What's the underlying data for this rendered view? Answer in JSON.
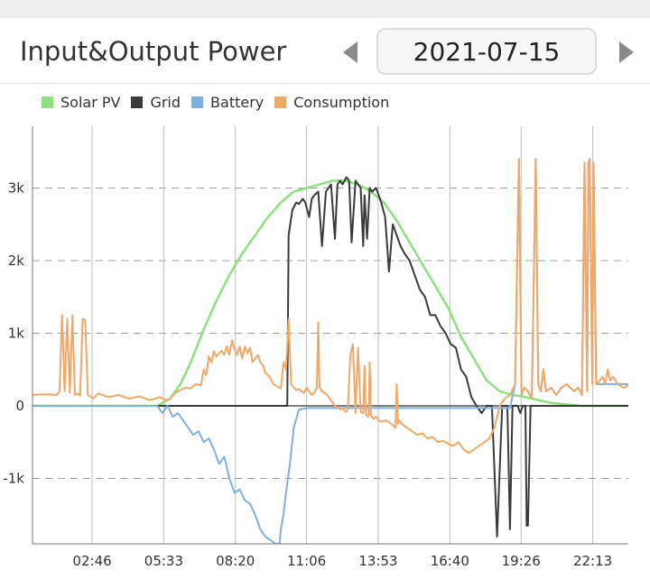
{
  "header": {
    "title": "Input&Output Power",
    "date": "2021-07-15"
  },
  "chart_data": {
    "type": "line",
    "title": "",
    "xlabel": "",
    "ylabel": "",
    "xlim": [
      0.45,
      23.6
    ],
    "ylim": [
      -1900,
      3850
    ],
    "x_ticks": [
      2.7667,
      5.55,
      8.3333,
      11.1,
      13.8833,
      16.6667,
      19.4333,
      22.2167
    ],
    "x_tick_labels": [
      "02:46",
      "05:33",
      "08:20",
      "11:06",
      "13:53",
      "16:40",
      "19:26",
      "22:13"
    ],
    "y_ticks": [
      -1000,
      0,
      1000,
      2000,
      3000
    ],
    "y_tick_labels": [
      "-1k",
      "0",
      "1k",
      "2k",
      "3k"
    ],
    "grid": true,
    "legend_position": "top-left",
    "series": [
      {
        "name": "Solar PV",
        "color": "#8ee07f",
        "x": [
          0.45,
          5.3,
          5.8,
          6.2,
          6.6,
          7.1,
          7.6,
          8.1,
          8.6,
          9.1,
          9.6,
          10.1,
          10.6,
          11.1,
          11.6,
          12.1,
          12.6,
          13.1,
          13.6,
          14.1,
          14.6,
          15.1,
          15.6,
          16.1,
          16.6,
          17.1,
          17.6,
          18.1,
          18.6,
          19.1,
          19.6,
          20.1,
          20.6,
          21.2,
          21.8,
          23.6
        ],
        "values": [
          0,
          0,
          100,
          300,
          600,
          1050,
          1450,
          1800,
          2100,
          2350,
          2600,
          2800,
          2950,
          3000,
          3050,
          3100,
          3100,
          3050,
          2950,
          2800,
          2550,
          2250,
          1950,
          1650,
          1350,
          950,
          650,
          350,
          200,
          150,
          120,
          80,
          40,
          20,
          0,
          0
        ]
      },
      {
        "name": "Grid",
        "color": "#3a3a3a",
        "x": [
          0.45,
          10.0,
          10.35,
          10.4,
          10.55,
          10.7,
          10.8,
          10.95,
          11.05,
          11.2,
          11.3,
          11.4,
          11.55,
          11.7,
          11.85,
          11.95,
          12.05,
          12.2,
          12.3,
          12.4,
          12.5,
          12.65,
          12.75,
          12.85,
          13.0,
          13.1,
          13.2,
          13.3,
          13.35,
          13.45,
          13.55,
          13.65,
          13.8,
          13.9,
          14.0,
          14.15,
          14.3,
          14.45,
          14.55,
          14.65,
          14.75,
          14.9,
          15.1,
          15.3,
          15.5,
          15.7,
          15.9,
          16.1,
          16.3,
          16.5,
          16.7,
          16.9,
          17.1,
          17.3,
          17.5,
          17.7,
          17.9,
          18.1,
          18.3,
          18.5,
          18.7,
          18.9,
          19.0,
          19.1,
          19.3,
          19.4,
          19.5,
          19.6,
          19.65,
          19.7,
          19.8,
          20.0,
          20.1,
          20.2,
          20.3,
          20.4,
          20.6,
          20.8,
          21.0,
          21.2,
          21.4,
          21.5,
          21.6,
          21.7,
          21.8,
          22.0,
          22.05,
          22.2,
          22.25,
          22.35,
          22.4,
          23.6
        ],
        "values": [
          0,
          0,
          0,
          2350,
          2700,
          2800,
          2780,
          2850,
          2800,
          2600,
          2850,
          2900,
          2950,
          2200,
          2950,
          3000,
          3050,
          2300,
          3050,
          3100,
          3050,
          3150,
          3100,
          2250,
          3100,
          3050,
          3000,
          2200,
          2900,
          2300,
          3000,
          2950,
          3000,
          2900,
          2800,
          2600,
          1850,
          2500,
          2400,
          2300,
          2200,
          2100,
          2000,
          1800,
          1600,
          1500,
          1250,
          1250,
          1100,
          1000,
          850,
          800,
          500,
          400,
          120,
          0,
          -100,
          0,
          0,
          -1800,
          0,
          0,
          -1700,
          0,
          0,
          -100,
          0,
          0,
          -1650,
          -1650,
          0,
          0,
          0,
          0,
          0,
          0,
          0,
          0,
          0,
          0,
          0,
          0,
          0,
          0,
          0,
          0,
          0,
          0,
          0,
          0,
          0,
          0
        ]
      },
      {
        "name": "Battery",
        "color": "#7fb0dd",
        "x": [
          0.45,
          5.3,
          5.5,
          5.7,
          5.9,
          6.1,
          6.3,
          6.5,
          6.7,
          6.9,
          7.1,
          7.3,
          7.5,
          7.7,
          7.9,
          8.1,
          8.3,
          8.5,
          8.7,
          8.9,
          9.1,
          9.3,
          9.5,
          9.7,
          9.9,
          10.05,
          10.1,
          10.2,
          10.3,
          10.45,
          10.6,
          10.8,
          11.2,
          12.0,
          13.0,
          14.0,
          15.0,
          16.0,
          17.0,
          18.0,
          19.0,
          19.2,
          19.35,
          19.45,
          19.55,
          19.7,
          19.85,
          20.0,
          20.1,
          20.2,
          20.3,
          20.4,
          20.6,
          20.8,
          21.0,
          21.2,
          21.5,
          21.65,
          21.8,
          21.9,
          22.0,
          22.05,
          22.1,
          22.2,
          22.25,
          22.35,
          22.4,
          23.6
        ],
        "values": [
          0,
          0,
          -100,
          0,
          -150,
          -100,
          -200,
          -300,
          -400,
          -350,
          -500,
          -450,
          -600,
          -800,
          -700,
          -1000,
          -1200,
          -1150,
          -1300,
          -1350,
          -1500,
          -1700,
          -1800,
          -1850,
          -1900,
          -1900,
          -1700,
          -1500,
          -1200,
          -800,
          -300,
          -50,
          -30,
          -30,
          -30,
          -30,
          -30,
          -30,
          -30,
          -30,
          -30,
          300,
          3400,
          150,
          250,
          200,
          100,
          3400,
          300,
          200,
          500,
          200,
          250,
          150,
          250,
          300,
          200,
          250,
          150,
          3350,
          200,
          3350,
          3400,
          300,
          3350,
          300,
          300,
          300
        ]
      },
      {
        "name": "Consumption",
        "color": "#f0a868",
        "x": [
          0.45,
          1.0,
          1.4,
          1.5,
          1.6,
          1.7,
          1.8,
          1.9,
          2.0,
          2.1,
          2.2,
          2.3,
          2.4,
          2.5,
          2.6,
          2.7,
          2.8,
          3.0,
          3.4,
          3.8,
          4.2,
          4.6,
          5.0,
          5.2,
          5.4,
          5.6,
          5.8,
          6.0,
          6.2,
          6.4,
          6.6,
          6.8,
          7.0,
          7.1,
          7.2,
          7.3,
          7.4,
          7.5,
          7.6,
          7.7,
          7.8,
          7.9,
          8.0,
          8.1,
          8.2,
          8.3,
          8.4,
          8.5,
          8.6,
          8.7,
          8.8,
          8.9,
          9.0,
          9.1,
          9.2,
          9.3,
          9.4,
          9.5,
          9.6,
          9.7,
          9.8,
          9.9,
          10.0,
          10.1,
          10.2,
          10.3,
          10.4,
          10.5,
          10.6,
          10.7,
          10.8,
          10.9,
          11.0,
          11.1,
          11.2,
          11.3,
          11.4,
          11.5,
          11.55,
          11.6,
          11.7,
          11.8,
          11.9,
          12.0,
          12.1,
          12.2,
          12.3,
          12.4,
          12.5,
          12.6,
          12.7,
          12.8,
          12.9,
          13.0,
          13.1,
          13.2,
          13.3,
          13.35,
          13.4,
          13.5,
          13.55,
          13.6,
          13.7,
          13.8,
          13.9,
          14.0,
          14.2,
          14.4,
          14.55,
          14.6,
          14.65,
          14.7,
          14.8,
          15.0,
          15.2,
          15.4,
          15.6,
          15.8,
          16.0,
          16.2,
          16.4,
          16.6,
          16.8,
          17.0,
          17.2,
          17.4,
          17.6,
          17.8,
          18.0,
          18.2,
          18.4,
          18.6,
          18.8,
          19.0,
          19.2,
          19.35,
          19.45,
          19.55,
          19.7,
          19.85,
          20.0,
          20.1,
          20.2,
          20.3,
          20.4,
          20.6,
          20.8,
          21.0,
          21.2,
          21.5,
          21.65,
          21.8,
          21.9,
          22.0,
          22.05,
          22.1,
          22.2,
          22.25,
          22.35,
          22.5,
          22.6,
          22.7,
          22.8,
          22.9,
          23.0,
          23.2,
          23.4,
          23.6
        ],
        "values": [
          150,
          160,
          150,
          200,
          1250,
          200,
          1200,
          180,
          1250,
          150,
          170,
          140,
          1200,
          1180,
          150,
          130,
          100,
          170,
          120,
          150,
          100,
          130,
          80,
          100,
          120,
          80,
          90,
          180,
          220,
          250,
          240,
          300,
          280,
          500,
          420,
          680,
          600,
          750,
          680,
          720,
          760,
          700,
          820,
          700,
          900,
          780,
          700,
          820,
          650,
          820,
          720,
          800,
          600,
          650,
          700,
          600,
          560,
          450,
          420,
          380,
          300,
          280,
          260,
          240,
          600,
          500,
          1200,
          300,
          250,
          220,
          230,
          200,
          180,
          250,
          200,
          150,
          180,
          250,
          1150,
          250,
          200,
          180,
          150,
          100,
          50,
          0,
          -20,
          -50,
          -30,
          -80,
          -60,
          700,
          850,
          -100,
          800,
          -80,
          -100,
          550,
          -120,
          -150,
          600,
          -130,
          -180,
          -150,
          -200,
          -220,
          -200,
          -250,
          -300,
          300,
          -250,
          -200,
          -250,
          -300,
          -350,
          -400,
          -380,
          -450,
          -430,
          -500,
          -480,
          -520,
          -550,
          -500,
          -600,
          -650,
          -600,
          -550,
          -500,
          -450,
          -300,
          0,
          100,
          150,
          300,
          3400,
          150,
          250,
          200,
          100,
          3400,
          300,
          200,
          500,
          200,
          250,
          150,
          250,
          300,
          200,
          250,
          150,
          3350,
          200,
          3350,
          3400,
          300,
          3350,
          300,
          350,
          400,
          300,
          500,
          350,
          400,
          300,
          250,
          280
        ]
      }
    ]
  }
}
